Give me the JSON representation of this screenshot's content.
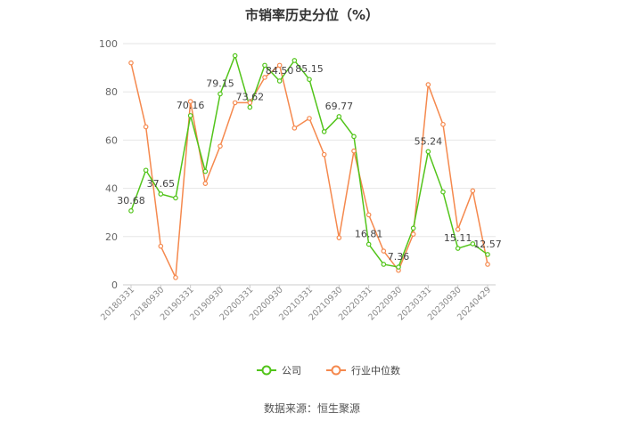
{
  "title": "市销率历史分位（%）",
  "source": "数据来源：恒生聚源",
  "chart_data": {
    "type": "line",
    "title": "市销率历史分位（%）",
    "xlabel": "",
    "ylabel": "",
    "ylim": [
      0,
      100
    ],
    "yticks": [
      0,
      20,
      40,
      60,
      80,
      100
    ],
    "grid": true,
    "legend_position": "bottom",
    "x_tick_labels": [
      "20180331",
      "20180930",
      "20190331",
      "20190930",
      "20200331",
      "20200930",
      "20210331",
      "20210930",
      "20220331",
      "20220930",
      "20230331",
      "20230930",
      "20240429"
    ],
    "series": [
      {
        "name": "公司",
        "color": "#52c41a",
        "values": [
          30.68,
          47.5,
          37.65,
          36.0,
          70.16,
          47.0,
          79.15,
          95.0,
          73.62,
          91.0,
          84.5,
          93.0,
          85.15,
          63.5,
          69.77,
          61.5,
          16.81,
          8.5,
          7.36,
          23.5,
          55.24,
          38.5,
          15.11,
          17.0,
          12.57
        ],
        "labels": {
          "0": "30.68",
          "2": "37.65",
          "4": "70.16",
          "6": "79.15",
          "8": "73.62",
          "10": "84.50",
          "12": "85.15",
          "14": "69.77",
          "16": "16.81",
          "18": "7.36",
          "20": "55.24",
          "22": "15.11",
          "24": "12.57"
        }
      },
      {
        "name": "行业中位数",
        "color": "#f5894e",
        "values": [
          92.0,
          65.5,
          16.0,
          3.0,
          76.0,
          42.0,
          57.5,
          75.5,
          75.5,
          86.0,
          91.0,
          65.0,
          69.0,
          54.0,
          19.5,
          55.5,
          29.0,
          14.0,
          6.0,
          21.0,
          83.0,
          66.5,
          23.0,
          39.0,
          8.5
        ]
      }
    ]
  }
}
